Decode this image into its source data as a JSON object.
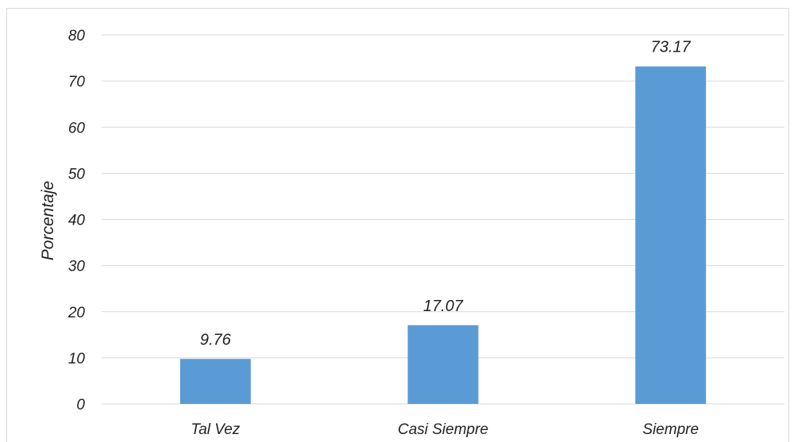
{
  "chart_data": {
    "type": "bar",
    "title": "",
    "xlabel": "",
    "ylabel": "Porcentaje",
    "categories": [
      "Tal Vez",
      "Casi Siempre",
      "Siempre"
    ],
    "values": [
      9.76,
      17.07,
      73.17
    ],
    "data_labels": [
      "9.76",
      "17.07",
      "73.17"
    ],
    "ylim": [
      0,
      80
    ],
    "yticks": [
      0,
      10,
      20,
      30,
      40,
      50,
      60,
      70,
      80
    ],
    "grid": true,
    "legend": "none",
    "bar_color": "#5b9bd5",
    "grid_color": "#d9d9d9"
  }
}
